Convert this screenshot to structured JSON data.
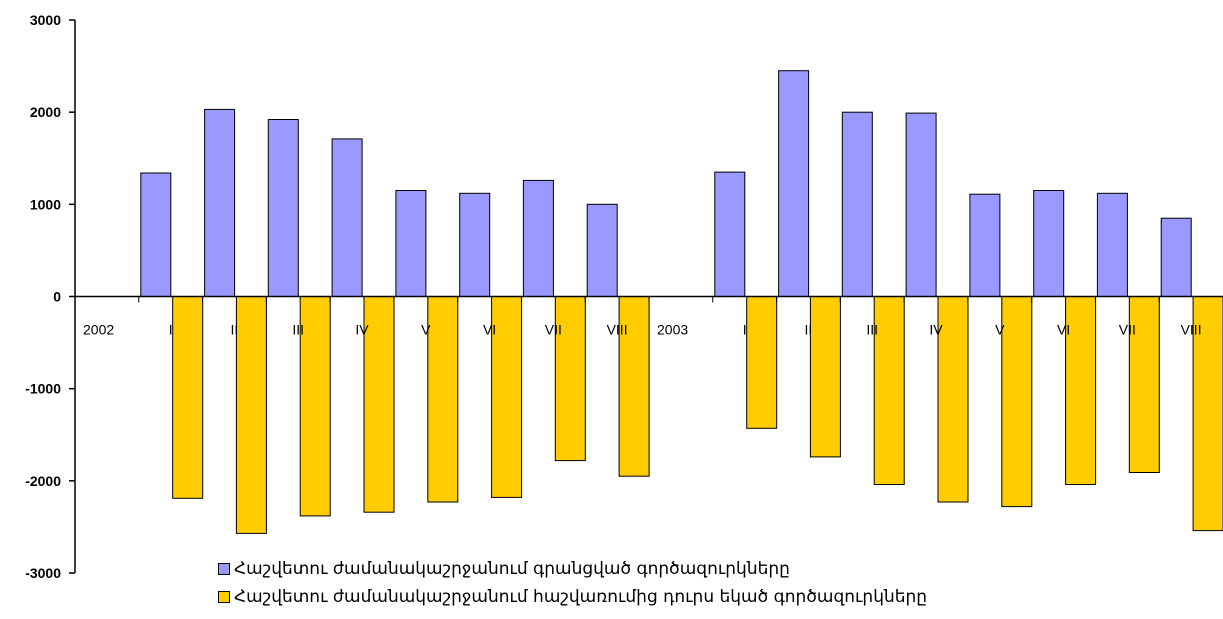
{
  "chart_data": {
    "type": "bar",
    "categories": [
      "2002",
      "I",
      "II",
      "III",
      "IV",
      "V",
      "VI",
      "VII",
      "VIII",
      "2003",
      "I",
      "II",
      "III",
      "IV",
      "V",
      "VI",
      "VII",
      "VIII"
    ],
    "series": [
      {
        "name": "Հաշվետու ժամանակաշրջանում գրանցված գործազուրկները",
        "color": "#9999ff",
        "values": [
          null,
          1340,
          2030,
          1920,
          1710,
          1150,
          1120,
          1260,
          1000,
          null,
          1350,
          2450,
          2000,
          1990,
          1110,
          1150,
          1120,
          850
        ]
      },
      {
        "name": "Հաշվետու ժամանակաշրջանում հաշվառումից դուրս եկած գործազուրկները",
        "color": "#ffcc00",
        "values": [
          null,
          -2190,
          -2570,
          -2380,
          -2340,
          -2230,
          -2180,
          -1780,
          -1950,
          null,
          -1430,
          -1740,
          -2040,
          -2230,
          -2280,
          -2040,
          -1910,
          -2540
        ]
      }
    ],
    "ylim": [
      -3000,
      3000
    ],
    "yticks": [
      "3000",
      "2000",
      "1000",
      "0",
      "-1000",
      "-2000",
      "-3000"
    ],
    "legend_position": "bottom"
  }
}
